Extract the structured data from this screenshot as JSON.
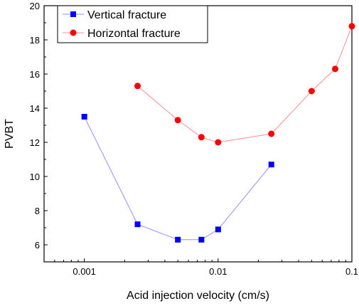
{
  "chart_data": {
    "type": "line",
    "xscale": "log",
    "xlabel": "Acid injection velocity (cm/s)",
    "ylabel": "PVBT",
    "xlim": [
      0.0005,
      0.1
    ],
    "ylim": [
      5,
      20
    ],
    "x_ticks": [
      0.001,
      0.01,
      0.1
    ],
    "x_tick_labels": [
      "0.001",
      "0.01",
      "0.1"
    ],
    "y_ticks": [
      6,
      8,
      10,
      12,
      14,
      16,
      18,
      20
    ],
    "y_tick_labels": [
      "6",
      "8",
      "10",
      "12",
      "14",
      "16",
      "18",
      "20"
    ],
    "grid": false,
    "legend_position": "top-left",
    "series": [
      {
        "name": "Vertical fracture",
        "color": "#0000ff",
        "line_color": "#8f8fff",
        "marker": "square",
        "x": [
          0.001,
          0.0025,
          0.005,
          0.0075,
          0.01,
          0.025
        ],
        "y": [
          13.5,
          7.2,
          6.3,
          6.3,
          6.9,
          10.7
        ]
      },
      {
        "name": "Horizontal fracture",
        "color": "#ff0000",
        "line_color": "#ff8f8f",
        "marker": "circle",
        "x": [
          0.0025,
          0.005,
          0.0075,
          0.01,
          0.025,
          0.05,
          0.075,
          0.1
        ],
        "y": [
          15.3,
          13.3,
          12.3,
          12.0,
          12.5,
          15.0,
          16.3,
          18.8
        ]
      }
    ]
  }
}
